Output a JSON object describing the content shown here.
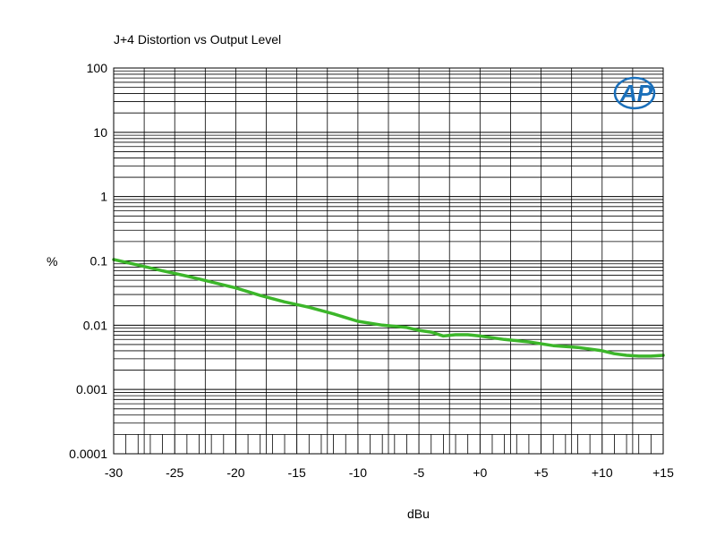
{
  "chart_data": {
    "type": "line",
    "title": "J+4 Distortion vs Output Level",
    "xlabel": "dBu",
    "ylabel": "%",
    "xscale": "linear",
    "yscale": "log",
    "xlim": [
      -30,
      15
    ],
    "ylim": [
      0.0001,
      100
    ],
    "x_ticks": [
      -30,
      -25,
      -20,
      -15,
      -10,
      -5,
      0,
      5,
      10,
      15
    ],
    "x_tick_labels": [
      "-30",
      "-25",
      "-20",
      "-15",
      "-10",
      "-5",
      "+0",
      "+5",
      "+10",
      "+15"
    ],
    "y_ticks": [
      0.0001,
      0.001,
      0.01,
      0.1,
      1,
      10,
      100
    ],
    "y_tick_labels": [
      "0.0001",
      "0.001",
      "0.01",
      "0.1",
      "1",
      "10",
      "100"
    ],
    "grid": true,
    "series": [
      {
        "color": "#3cb62a",
        "x": [
          -30,
          -28,
          -26,
          -24,
          -22,
          -20,
          -18,
          -16,
          -14,
          -12,
          -10,
          -8,
          -6,
          -5,
          -4,
          -3,
          -2,
          -1,
          0,
          2,
          4,
          6,
          8,
          10,
          11,
          12,
          13,
          14,
          15
        ],
        "y": [
          0.105,
          0.086,
          0.07,
          0.058,
          0.047,
          0.038,
          0.029,
          0.023,
          0.019,
          0.015,
          0.0115,
          0.01,
          0.0092,
          0.0083,
          0.0078,
          0.0068,
          0.0071,
          0.0071,
          0.0068,
          0.006,
          0.0055,
          0.0048,
          0.0045,
          0.004,
          0.0036,
          0.0034,
          0.0033,
          0.0033,
          0.0034
        ]
      }
    ]
  },
  "logo": {
    "text": "AP",
    "color": "#1a6fba"
  }
}
